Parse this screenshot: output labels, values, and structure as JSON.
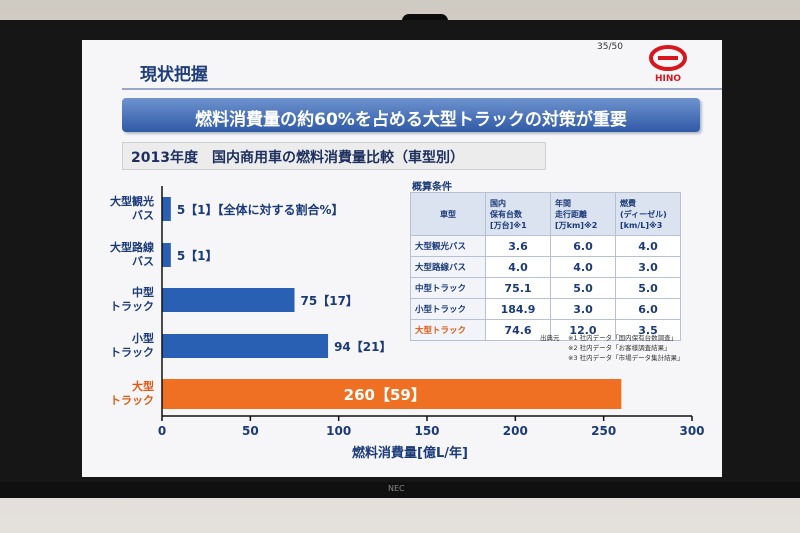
{
  "slide": {
    "page_num": "35/50",
    "header_title": "現状把握",
    "logo_text": "HINO",
    "banner": "燃料消費量の約60%を占める大型トラックの対策が重要",
    "subtitle": "2013年度　国内商用車の燃料消費量比較（車型別）"
  },
  "chart_data": {
    "type": "bar",
    "orientation": "horizontal",
    "categories": [
      "大型観光バス",
      "大型路線バス",
      "中型トラック",
      "小型トラック",
      "大型トラック"
    ],
    "category_lines": [
      [
        "大型観光",
        "バス"
      ],
      [
        "大型路線",
        "バス"
      ],
      [
        "中型",
        "トラック"
      ],
      [
        "小型",
        "トラック"
      ],
      [
        "大型",
        "トラック"
      ]
    ],
    "values": [
      5,
      5,
      75,
      94,
      260
    ],
    "labels": [
      "5【1】【全体に対する割合%】",
      "5【1】",
      "75【17】",
      "94【21】",
      "260【59】"
    ],
    "highlight_index": 4,
    "xlabel": "燃料消費量[億L/年]",
    "xlim": [
      0,
      300
    ],
    "xticks": [
      "0",
      "50",
      "100",
      "150",
      "200",
      "250",
      "300"
    ],
    "colors": {
      "bar": "#2a60b4",
      "highlight": "#ef7022"
    }
  },
  "table": {
    "heading": "概算条件",
    "headers": [
      "車型",
      "国内\n保有台数\n[万台]※1",
      "年間\n走行距離\n[万km]※2",
      "燃費\n(ディーゼル)\n[km/L]※3"
    ],
    "rows": [
      [
        "大型観光バス",
        "3.6",
        "6.0",
        "4.0"
      ],
      [
        "大型路線バス",
        "4.0",
        "4.0",
        "3.0"
      ],
      [
        "中型トラック",
        "75.1",
        "5.0",
        "5.0"
      ],
      [
        "小型トラック",
        "184.9",
        "3.0",
        "6.0"
      ],
      [
        "大型トラック",
        "74.6",
        "12.0",
        "3.5"
      ]
    ],
    "source_label": "出典元",
    "sources": [
      "※1 社内データ「国内保有台数調査」",
      "※2 社内データ「お客様調査結果」",
      "※3 社内データ「市場データ集計結果」"
    ]
  },
  "monitor": {
    "brand": "NEC"
  }
}
